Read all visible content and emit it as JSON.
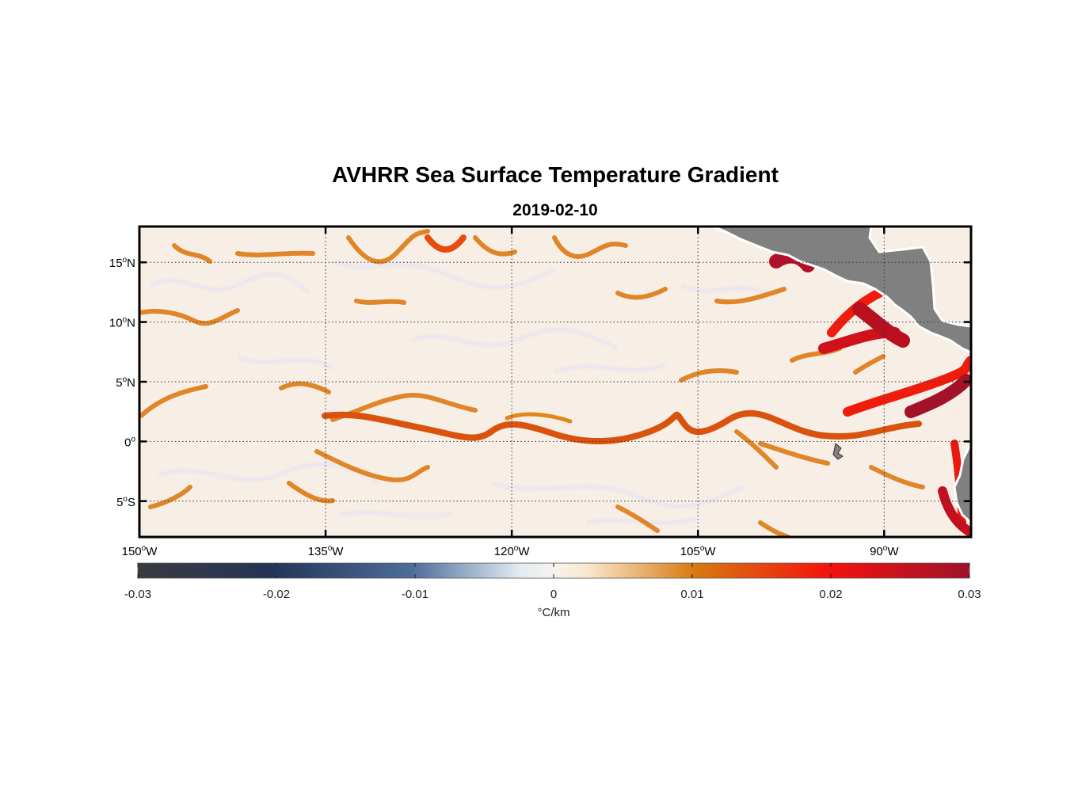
{
  "title": "AVHRR Sea Surface Temperature Gradient",
  "subtitle": "2019-02-10",
  "map": {
    "lon_range": [
      -150,
      -83
    ],
    "lat_range": [
      -8,
      18
    ],
    "lon_ticks": [
      {
        "value": -150,
        "label": "150",
        "suffix": "W"
      },
      {
        "value": -135,
        "label": "135",
        "suffix": "W"
      },
      {
        "value": -120,
        "label": "120",
        "suffix": "W"
      },
      {
        "value": -105,
        "label": "105",
        "suffix": "W"
      },
      {
        "value": -90,
        "label": "90",
        "suffix": "W"
      }
    ],
    "lat_ticks": [
      {
        "value": 15,
        "label": "15",
        "suffix": "N"
      },
      {
        "value": 10,
        "label": "10",
        "suffix": "N"
      },
      {
        "value": 5,
        "label": "5",
        "suffix": "N"
      },
      {
        "value": 0,
        "label": "0",
        "suffix": ""
      },
      {
        "value": -5,
        "label": "5",
        "suffix": "S"
      }
    ],
    "grid": true,
    "land_color": "#808080",
    "background_color": "#f7efe6"
  },
  "colorbar": {
    "min": -0.03,
    "max": 0.03,
    "tick_values": [
      -0.03,
      -0.02,
      -0.01,
      0,
      0.01,
      0.02,
      0.03
    ],
    "tick_labels": [
      "-0.03",
      "-0.02",
      "-0.01",
      "0",
      "0.01",
      "0.02",
      "0.03"
    ],
    "units": "°C/km",
    "colors": [
      "#3b3b3f",
      "#233458",
      "#4e6d9b",
      "#e2ecf2",
      "#fae8cf",
      "#d77a10",
      "#f3130e",
      "#a0112c"
    ]
  }
}
